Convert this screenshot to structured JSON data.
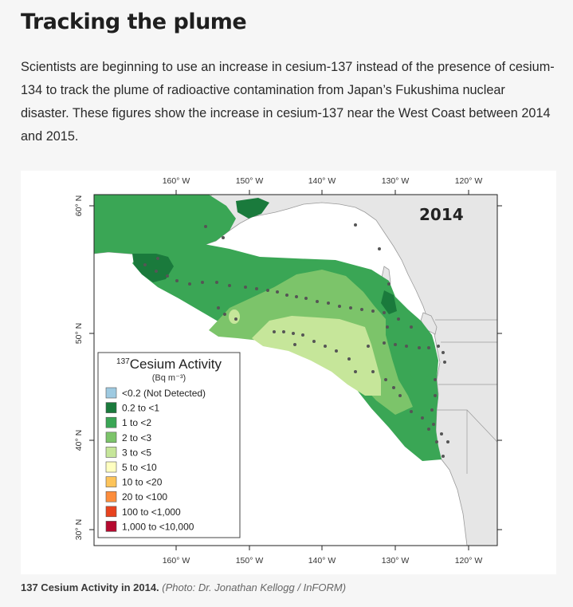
{
  "heading": "Tracking the plume",
  "intro": "Scientists are beginning to use an increase in cesium-137 instead of the presence of cesium-134 to track the plume of radioactive contamination from Japan’s Fukushima nuclear disaster. These figures show the increase in cesium-137 near the West Coast between 2014 and 2015.",
  "map": {
    "year": "2014",
    "lon_labels": [
      "160° W",
      "150° W",
      "140° W",
      "130° W",
      "120° W"
    ],
    "lat_labels": [
      "60° N",
      "50° N",
      "40° N",
      "30° N"
    ],
    "colors": {
      "land": "#e6e6e6",
      "ocean": "#ffffff",
      "dark_green": "#1a7a3c",
      "green": "#3aa655",
      "mid_green": "#7cc46a",
      "light_green": "#c6e69a"
    }
  },
  "legend": {
    "title_sup": "137",
    "title": "Cesium Activity",
    "unit": "(Bq m⁻³)",
    "items": [
      {
        "label": "<0.2 (Not Detected)",
        "color": "#9ecae1"
      },
      {
        "label": "0.2 to <1",
        "color": "#1a7a3c"
      },
      {
        "label": "1 to <2",
        "color": "#3aa655"
      },
      {
        "label": "2 to <3",
        "color": "#7cc46a"
      },
      {
        "label": "3 to <5",
        "color": "#c6e69a"
      },
      {
        "label": "5 to <10",
        "color": "#ffffc0"
      },
      {
        "label": "10 to <20",
        "color": "#fdc45a"
      },
      {
        "label": "20 to <100",
        "color": "#fd8d3c"
      },
      {
        "label": "100 to <1,000",
        "color": "#e8431e"
      },
      {
        "label": "1,000 to <10,000",
        "color": "#b5092f"
      }
    ]
  },
  "caption": {
    "bold": "137 Cesium Activity in 2014.",
    "credit": "(Photo: Dr. Jonathan Kellogg / InFORM)"
  }
}
